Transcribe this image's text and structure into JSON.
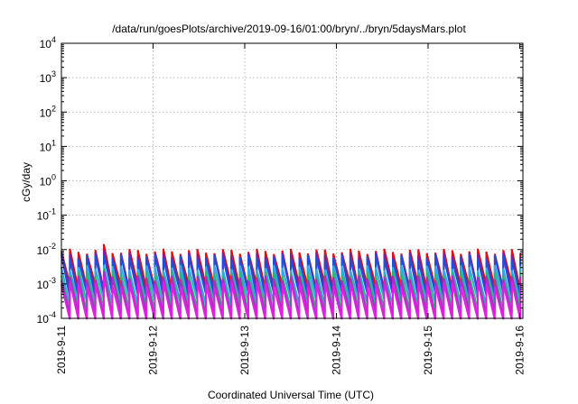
{
  "chart_data": {
    "type": "line",
    "title": "/data/run/goesPlots/archive/2019-09-16/01:00/bryn/../bryn/5daysMars.plot",
    "xlabel": "Coordinated Universal Time (UTC)",
    "ylabel": "cGy/day",
    "y_scale": "log",
    "ylim": [
      0.0001,
      10000
    ],
    "xlim": [
      "2019-09-11",
      "2019-09-16 01:00"
    ],
    "grid": true,
    "legend": "none",
    "x_ticks": [
      {
        "label": "2019-9-11",
        "day": 0
      },
      {
        "label": "2019-9-12",
        "day": 1
      },
      {
        "label": "2019-9-13",
        "day": 2
      },
      {
        "label": "2019-9-14",
        "day": 3
      },
      {
        "label": "2019-9-15",
        "day": 4
      },
      {
        "label": "2019-9-16",
        "day": 5
      }
    ],
    "y_ticks": [
      {
        "base": "10",
        "exp": "-4",
        "value": 0.0001
      },
      {
        "base": "10",
        "exp": "-3",
        "value": 0.001
      },
      {
        "base": "10",
        "exp": "-2",
        "value": 0.01
      },
      {
        "base": "10",
        "exp": "-1",
        "value": 0.1
      },
      {
        "base": "10",
        "exp": "0",
        "value": 1
      },
      {
        "base": "10",
        "exp": "1",
        "value": 10
      },
      {
        "base": "10",
        "exp": "2",
        "value": 100
      },
      {
        "base": "10",
        "exp": "3",
        "value": 1000
      },
      {
        "base": "10",
        "exp": "4",
        "value": 10000
      }
    ],
    "sawtooth_period_days": 0.0927,
    "series": [
      {
        "color": "#e01010",
        "peak": 0.009,
        "trough": 0.00085
      },
      {
        "color": "#7a1fa8",
        "peak": 0.007,
        "trough": 0.0006
      },
      {
        "color": "#1f4fd8",
        "peak": 0.006,
        "trough": 0.0005
      },
      {
        "color": "#30a8e0",
        "peak": 0.003,
        "trough": 0.0003
      },
      {
        "color": "#2bb673",
        "peak": 0.002,
        "trough": 0.00018
      },
      {
        "color": "#b02ac8",
        "peak": 0.0015,
        "trough": 0.00013
      },
      {
        "color": "#e020e0",
        "peak": 0.001,
        "trough": 8e-05
      }
    ]
  }
}
